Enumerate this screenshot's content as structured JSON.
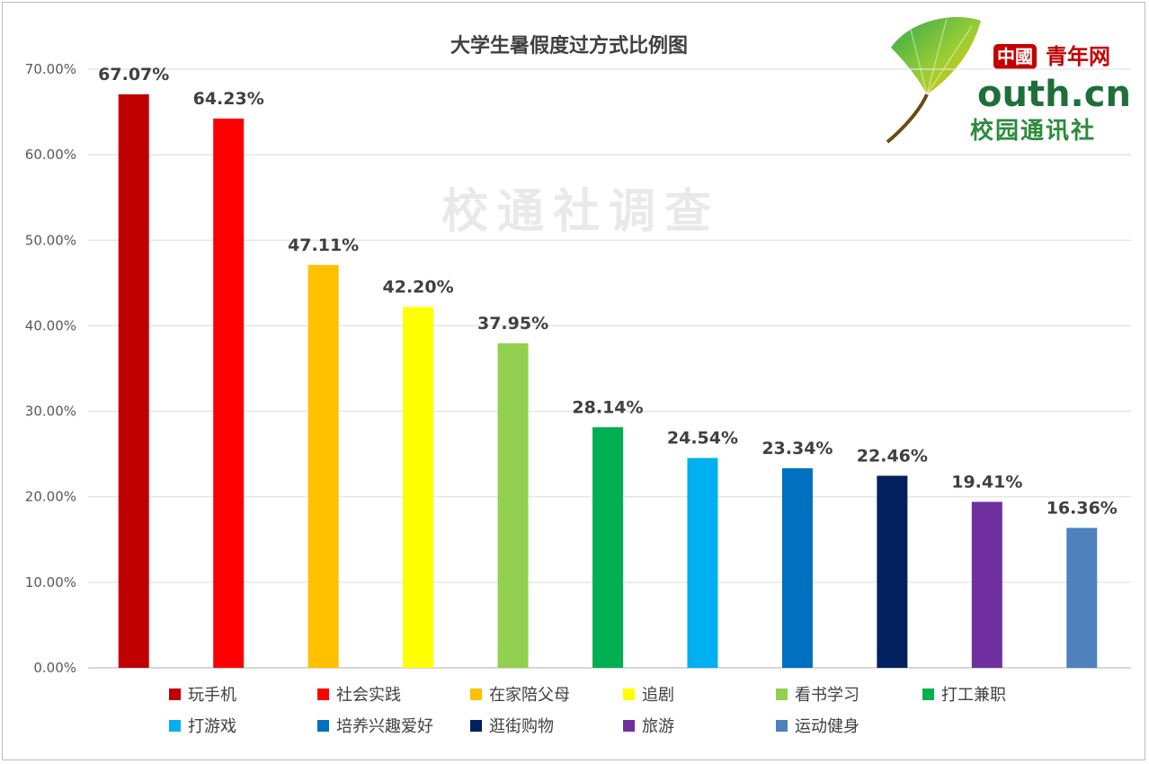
{
  "watermark": "校通社调查",
  "logo": {
    "badge": "中國",
    "site": "青年网",
    "domain": "outh.cn",
    "sub": "校园通讯社"
  },
  "chart_data": {
    "type": "bar",
    "title": "大学生暑假度过方式比例图",
    "xlabel": "",
    "ylabel": "",
    "ylim": [
      0,
      70
    ],
    "y_ticks": [
      "0.00%",
      "10.00%",
      "20.00%",
      "30.00%",
      "40.00%",
      "50.00%",
      "60.00%",
      "70.00%"
    ],
    "grid": true,
    "legend_position": "bottom",
    "categories": [
      "玩手机",
      "社会实践",
      "在家陪父母",
      "追剧",
      "看书学习",
      "打工兼职",
      "打游戏",
      "培养兴趣爱好",
      "逛街购物",
      "旅游",
      "运动健身"
    ],
    "values": [
      67.07,
      64.23,
      47.11,
      42.2,
      37.95,
      28.14,
      24.54,
      23.34,
      22.46,
      19.41,
      16.36
    ],
    "value_labels": [
      "67.07%",
      "64.23%",
      "47.11%",
      "42.20%",
      "37.95%",
      "28.14%",
      "24.54%",
      "23.34%",
      "22.46%",
      "19.41%",
      "16.36%"
    ],
    "colors": [
      "#c00000",
      "#ff0000",
      "#ffc000",
      "#ffff00",
      "#92d050",
      "#00b050",
      "#00b0f0",
      "#0070c0",
      "#002060",
      "#7030a0",
      "#4f81bd"
    ]
  }
}
